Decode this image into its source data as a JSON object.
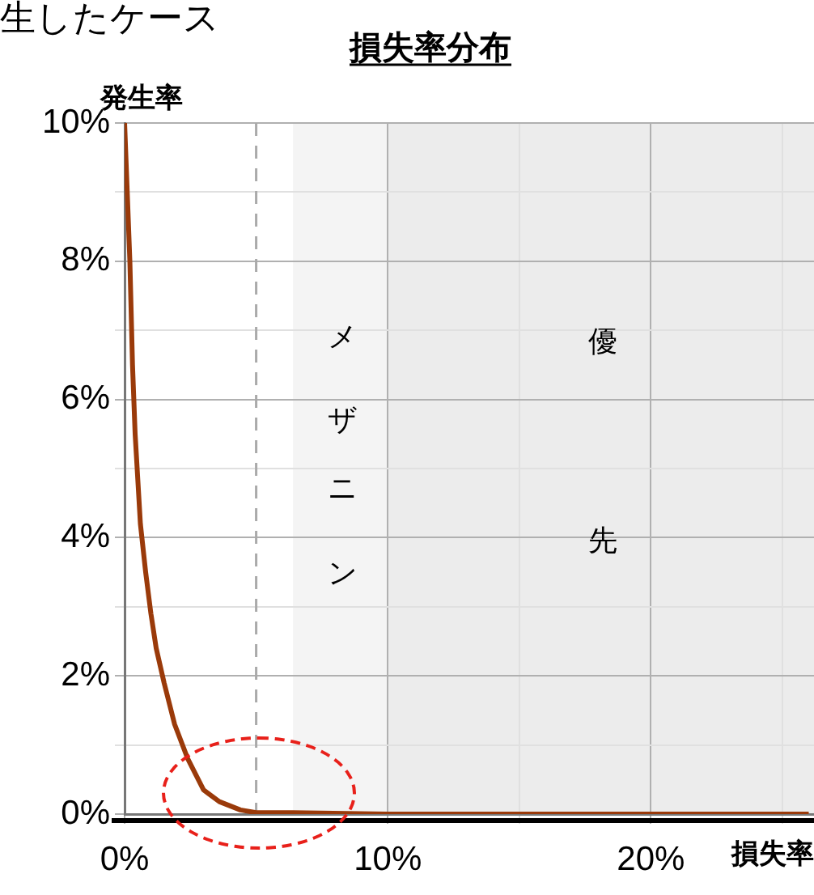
{
  "chart_data": {
    "type": "line",
    "title": "損失率分布",
    "xlabel": "損失率",
    "ylabel": "発生率",
    "annotations": [
      "生したケース"
    ],
    "series": [
      {
        "color": "#9a3a0a",
        "x": [
          0,
          0.1,
          0.2,
          0.3,
          0.4,
          0.6,
          0.8,
          1.0,
          1.2,
          1.5,
          1.9,
          2.4,
          3.0,
          3.6,
          4.4,
          5.0,
          6.4,
          10,
          15,
          20,
          26
        ],
        "values": [
          10,
          9,
          8,
          6.5,
          5.5,
          4.2,
          3.5,
          2.9,
          2.4,
          1.9,
          1.3,
          0.8,
          0.35,
          0.18,
          0.06,
          0.02,
          0.02,
          0,
          0,
          0,
          0
        ]
      }
    ],
    "xlim": [
      0,
      26.2
    ],
    "xticks": [
      {
        "value": 0,
        "label": "0%"
      },
      {
        "value": 10,
        "label": "10%"
      },
      {
        "value": 15,
        "label": null
      },
      {
        "value": 20,
        "label": "20%"
      },
      {
        "value": 25,
        "label": null
      }
    ],
    "ylim": [
      0,
      10
    ],
    "yticks": [
      {
        "value": 0,
        "label": "0%"
      },
      {
        "value": 1,
        "label": null
      },
      {
        "value": 2,
        "label": "2%"
      },
      {
        "value": 3,
        "label": null
      },
      {
        "value": 4,
        "label": "4%"
      },
      {
        "value": 5,
        "label": null
      },
      {
        "value": 6,
        "label": "6%"
      },
      {
        "value": 7,
        "label": null
      },
      {
        "value": 8,
        "label": "8%"
      },
      {
        "value": 9,
        "label": null
      },
      {
        "value": 10,
        "label": "10%"
      }
    ],
    "ref_lines": [
      {
        "axis": "x",
        "value": 5,
        "color": "#aaaaaa",
        "line_style": "dashed"
      }
    ],
    "bands": [
      {
        "axis": "x",
        "from": 6.4,
        "to": 10,
        "label": "メザニン",
        "color": "#f4f4f4"
      },
      {
        "axis": "x",
        "from": 10,
        "to": 26.2,
        "label": "優先",
        "color": "#ececec"
      }
    ],
    "grid": true,
    "legend": false,
    "marker": "none",
    "line_style": "solid"
  }
}
